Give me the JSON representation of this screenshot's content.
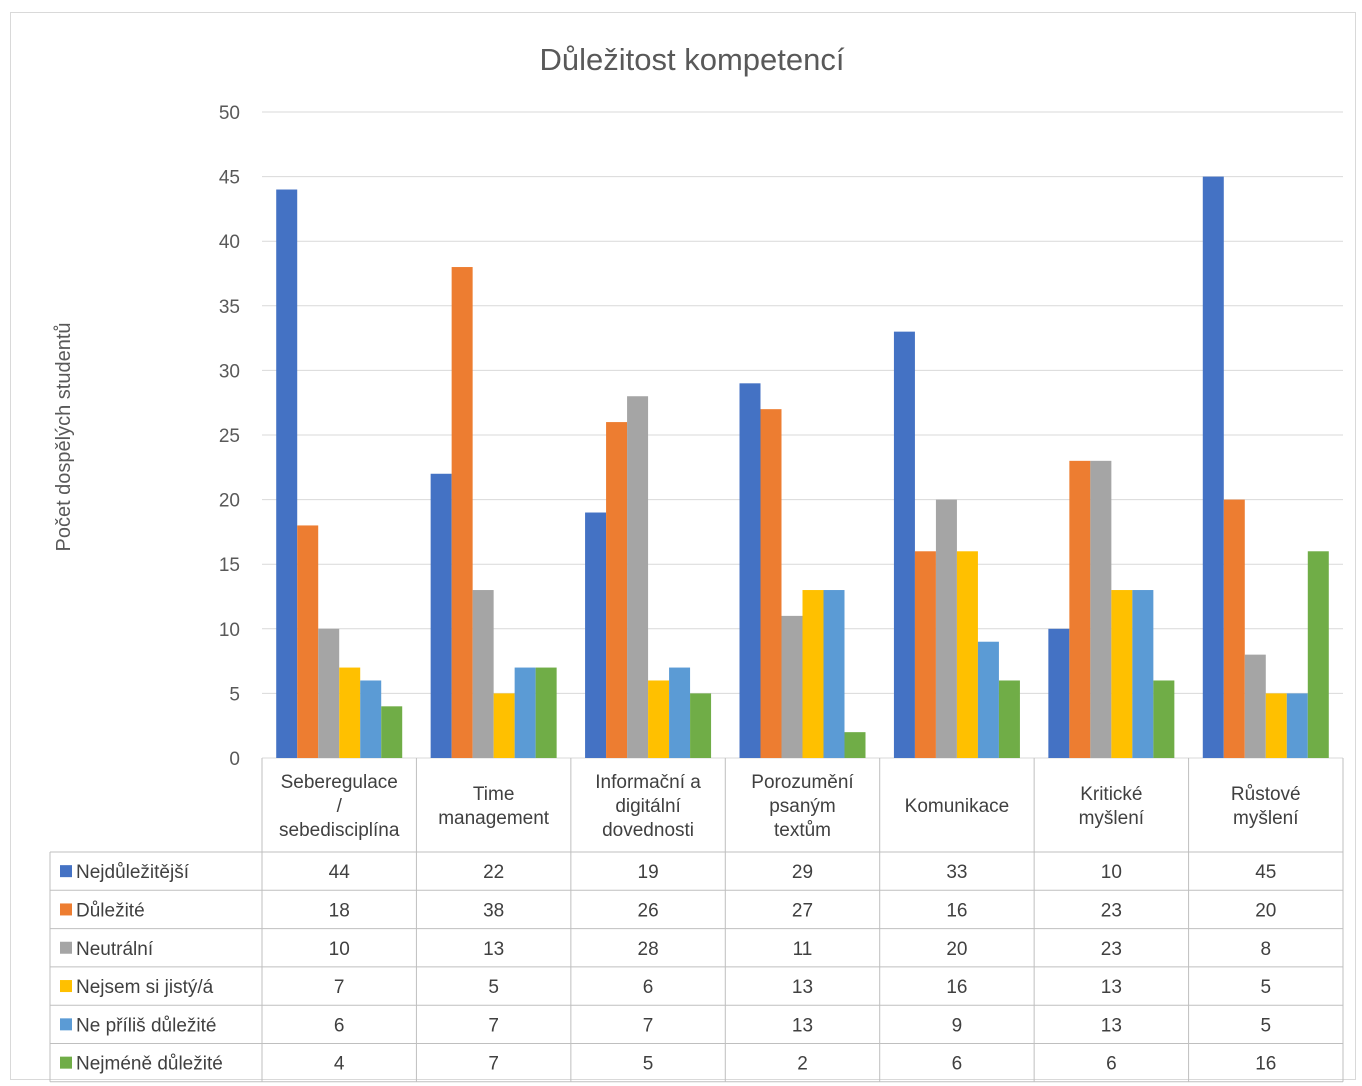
{
  "chart_data": {
    "type": "bar",
    "title": "Důležitost kompetencí",
    "xlabel": "",
    "ylabel": "Počet dospělých studentů",
    "ylim": [
      0,
      50
    ],
    "yticks": [
      0,
      5,
      10,
      15,
      20,
      25,
      30,
      35,
      40,
      45,
      50
    ],
    "grid": true,
    "legend": "data-table",
    "categories": [
      [
        "Seberegulace",
        "/",
        "sebedisciplína"
      ],
      [
        "Time",
        "management"
      ],
      [
        "Informační a",
        "digitální",
        "dovednosti"
      ],
      [
        "Porozumění",
        "psaným",
        "textům"
      ],
      [
        "Komunikace"
      ],
      [
        "Kritické",
        "myšlení"
      ],
      [
        "Růstové",
        "myšlení"
      ]
    ],
    "series": [
      {
        "name": "Nejdůležitější",
        "color": "#4472C4",
        "values": [
          44,
          22,
          19,
          29,
          33,
          10,
          45
        ]
      },
      {
        "name": "Důležité",
        "color": "#ED7D31",
        "values": [
          18,
          38,
          26,
          27,
          16,
          23,
          20
        ]
      },
      {
        "name": "Neutrální",
        "color": "#A5A5A5",
        "values": [
          10,
          13,
          28,
          11,
          20,
          23,
          8
        ]
      },
      {
        "name": "Nejsem si jistý/á",
        "color": "#FFC000",
        "values": [
          7,
          5,
          6,
          13,
          16,
          13,
          5
        ]
      },
      {
        "name": "Ne příliš důležité",
        "color": "#5B9BD5",
        "values": [
          6,
          7,
          7,
          13,
          9,
          13,
          5
        ]
      },
      {
        "name": "Nejméně důležité",
        "color": "#70AD47",
        "values": [
          4,
          7,
          5,
          2,
          6,
          6,
          16
        ]
      }
    ]
  }
}
